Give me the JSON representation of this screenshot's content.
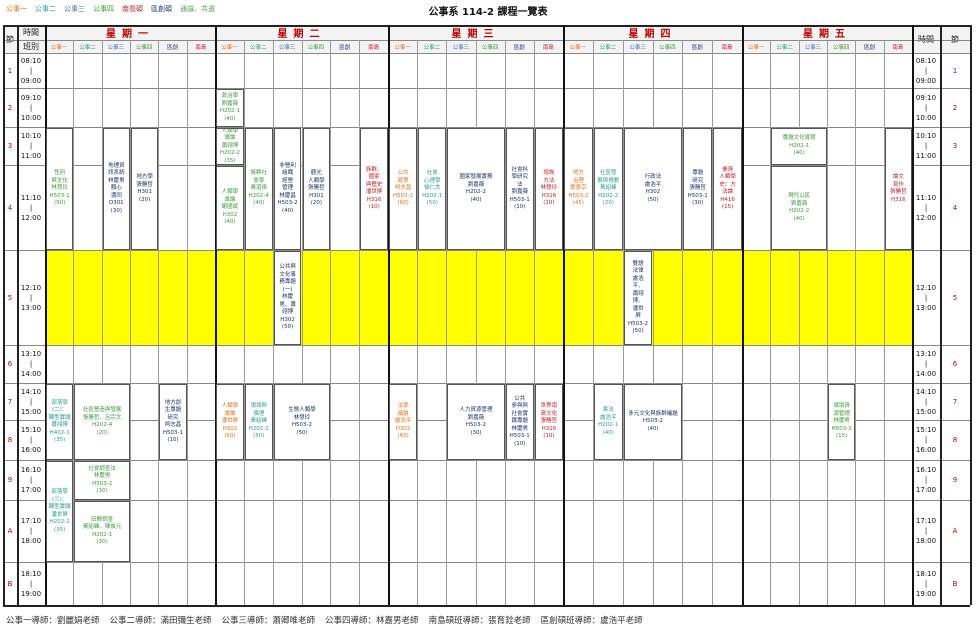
{
  "header": {
    "title": "公事系 114-2 課程一覽表",
    "legend": [
      {
        "label": "公事一",
        "color": "#e0701a"
      },
      {
        "label": "公事二",
        "color": "#2a9d8f"
      },
      {
        "label": "公事三",
        "color": "#3a6fb0"
      },
      {
        "label": "公事四",
        "color": "#3c9a3c"
      },
      {
        "label": "南島碩",
        "color": "#c0202a"
      },
      {
        "label": "區創碩",
        "color": "#1f2f6e"
      },
      {
        "label": "通識、共選",
        "color": "#5a9a5a"
      }
    ]
  },
  "table": {
    "period_header": "節",
    "time_header": "時間",
    "class_header": "班別",
    "periods": [
      {
        "no": "1",
        "start": "08:10",
        "end": "09:00"
      },
      {
        "no": "2",
        "start": "09:10",
        "end": "10:00"
      },
      {
        "no": "3",
        "start": "10:10",
        "end": "11:00"
      },
      {
        "no": "4",
        "start": "11:10",
        "end": "12:00"
      },
      {
        "no": "5",
        "start": "12:10",
        "end": "13:00"
      },
      {
        "no": "6",
        "start": "13:10",
        "end": "14:00"
      },
      {
        "no": "7",
        "start": "14:10",
        "end": "15:00"
      },
      {
        "no": "8",
        "start": "15:10",
        "end": "16:00"
      },
      {
        "no": "9",
        "start": "16:10",
        "end": "17:00"
      },
      {
        "no": "A",
        "start": "17:10",
        "end": "18:00"
      },
      {
        "no": "B",
        "start": "18:10",
        "end": "19:00"
      }
    ],
    "days": [
      {
        "name": "星期一",
        "columns": [
          "公事一",
          "公事二",
          "公事三",
          "公事四",
          "區創",
          "南島"
        ],
        "courses": [
          {
            "color": "#3c9a3c",
            "lines": [
              "性別",
              "與文化",
              "林慧玲",
              "H503-1",
              "(50)"
            ]
          },
          {
            "color": "#1f2f6e",
            "lines": [
              "地理資",
              "訊系統",
              "林慶男",
              "顏心",
              "濃同",
              "D301",
              "(30)"
            ]
          },
          {
            "color": "#1f2f6e",
            "lines": [
              "地方學",
              "張勝哲",
              "H301",
              "(20)"
            ]
          },
          {
            "color": "#2a9d8f",
            "lines": [
              "部落學",
              "(二)：",
              "轉型實踐",
              "蕭翊博",
              "H402-1",
              "(35)"
            ]
          },
          {
            "color": "#2a9d8f",
            "lines": [
              "部落學",
              "(三)：",
              "轉型實踐",
              "潘世屏",
              "H202-2",
              "(35)"
            ]
          },
          {
            "color": "#3c9a3c",
            "lines": [
              "社區營造與發展",
              "張勝哲、呂宗文",
              "H202-4",
              "(20)"
            ]
          },
          {
            "color": "#3c9a3c",
            "lines": [
              "社會調查法",
              "林慶男",
              "H503-2",
              "(30)"
            ]
          },
          {
            "color": "#3c9a3c",
            "lines": [
              "田野調查",
              "黃紹峰、陳俊元",
              "H202-1",
              "(30)"
            ]
          },
          {
            "color": "#1f2f6e",
            "lines": [
              "地方創",
              "生專題",
              "研究",
              "柯志昌",
              "H503-1",
              "(10)"
            ]
          }
        ]
      },
      {
        "name": "星期二",
        "columns": [
          "公事一",
          "公事二",
          "公事三",
          "公事四",
          "區創",
          "南島"
        ],
        "courses": [
          {
            "color": "#3c9a3c",
            "lines": [
              "政治學",
              "劉嘉薇",
              "H202-1",
              "(40)"
            ]
          },
          {
            "color": "#3c9a3c",
            "lines": [
              "人類學",
              "導論",
              "蕭翊博",
              "H202-2",
              "(35)"
            ]
          },
          {
            "color": "#3c9a3c",
            "lines": [
              "人類學",
              "導論",
              "謝國斌",
              "H302",
              "(40)"
            ]
          },
          {
            "color": "#3c9a3c",
            "lines": [
              "族群社",
              "會學",
              "黃道偉",
              "H202-4",
              "(40)"
            ]
          },
          {
            "color": "#1f2f6e",
            "lines": [
              "非營利",
              "組織",
              "經營",
              "管理",
              "林慶昌",
              "H503-2",
              "(40)"
            ]
          },
          {
            "color": "#1f2f6e",
            "lines": [
              "觀光",
              "人類學",
              "張勝哲",
              "H301",
              "(20)"
            ]
          },
          {
            "color": "#c0202a",
            "lines": [
              "族群、",
              "國家",
              "與歷史",
              "潘世屏",
              "H316",
              "(10)"
            ]
          },
          {
            "color": "#1f2f6e",
            "lines": [
              "公共與",
              "文化事",
              "務專題",
              "(一)",
              "林慶",
              "男、蕭",
              "翊博",
              "H302",
              "(50)"
            ]
          },
          {
            "color": "#e0701a",
            "lines": [
              "人類學",
              "導論",
              "潘世屏",
              "H302",
              "(60)"
            ]
          },
          {
            "color": "#2a9d8f",
            "lines": [
              "環境與",
              "倫理",
              "黃紹峰",
              "H202-2",
              "(50)"
            ]
          },
          {
            "color": "#1f2f6e",
            "lines": [
              "生態人類學",
              "林慧玲",
              "H503-2",
              "(50)"
            ]
          }
        ]
      },
      {
        "name": "星期三",
        "columns": [
          "公事一",
          "公事二",
          "公事三",
          "公事四",
          "區創",
          "南島"
        ],
        "courses": [
          {
            "color": "#e0701a",
            "lines": [
              "公共",
              "政策",
              "柯志昌",
              "H503-2",
              "(60)"
            ]
          },
          {
            "color": "#2a9d8f",
            "lines": [
              "社會",
              "心理學",
              "徐仁杰",
              "H202-1",
              "(50)"
            ]
          },
          {
            "color": "#1f2f6e",
            "lines": [
              "國家發展實務",
              "劉嘉薇",
              "H202-2",
              "(40)"
            ]
          },
          {
            "color": "#1f2f6e",
            "lines": [
              "社會科",
              "學研究",
              "法",
              "劉嘉薇",
              "H503-1",
              "(10)"
            ]
          },
          {
            "color": "#c0202a",
            "lines": [
              "諮詢",
              "方法",
              "林慧玲",
              "H316",
              "(10)"
            ]
          },
          {
            "color": "#e0701a",
            "lines": [
              "法學",
              "緒論",
              "盧浩平",
              "H302",
              "(60)"
            ]
          },
          {
            "color": "#1f2f6e",
            "lines": [
              "人力資源管理",
              "劉嘉薇",
              "H503-2",
              "(30)"
            ]
          },
          {
            "color": "#1f2f6e",
            "lines": [
              "公共",
              "參與與",
              "社會實",
              "踐專題",
              "林慶男",
              "H503-1",
              "(10)"
            ]
          },
          {
            "color": "#c0202a",
            "lines": [
              "世界南",
              "島文化",
              "張勝哲",
              "H316",
              "(10)"
            ]
          }
        ]
      },
      {
        "name": "星期四",
        "columns": [
          "公事一",
          "公事二",
          "公事三",
          "公事四",
          "區創",
          "南島"
        ],
        "courses": [
          {
            "color": "#e0701a",
            "lines": [
              "地方",
              "治理",
              "鄭景宗",
              "H503-2",
              "(45)"
            ]
          },
          {
            "color": "#2a9d8f",
            "lines": [
              "社區發",
              "展與規劃",
              "黃紹峰",
              "H202-2",
              "(20)"
            ]
          },
          {
            "color": "#1f2f6e",
            "lines": [
              "行政法",
              "盧浩平",
              "H302",
              "(50)"
            ]
          },
          {
            "color": "#1f2f6e",
            "lines": [
              "專題",
              "研究",
              "張勝哲",
              "H503-1",
              "(30)"
            ]
          },
          {
            "color": "#c0202a",
            "lines": [
              "臺灣",
              "人類學",
              "史：方",
              "法論",
              "H416",
              "(15)"
            ]
          },
          {
            "color": "#1f2f6e",
            "lines": [
              "雙語",
              "法律",
              "盧浩",
              "平、",
              "蕭翊",
              "博、",
              "潘世",
              "屏",
              "H503-2",
              "(50)"
            ]
          },
          {
            "color": "#2a9d8f",
            "lines": [
              "憲法",
              "盧浩平",
              "H202-1",
              "(40)"
            ]
          },
          {
            "color": "#1f2f6e",
            "lines": [
              "多元文化與族群議題",
              "H503-2",
              "(40)"
            ]
          }
        ]
      },
      {
        "name": "星期五",
        "columns": [
          "公事一",
          "公事二",
          "公事三",
          "公事四",
          "區創",
          "南島"
        ],
        "courses": [
          {
            "color": "#3c9a3c",
            "lines": [
              "專題文化導覽",
              "H202-1",
              "(40)"
            ]
          },
          {
            "color": "#3c9a3c",
            "lines": [
              "現代公民",
              "劉嘉薇",
              "H202-2",
              "(40)"
            ]
          },
          {
            "color": "#c0202a",
            "lines": [
              "論文",
              "寫作",
              "張勝哲",
              "H316"
            ]
          },
          {
            "color": "#3c9a3c",
            "lines": [
              "環境資",
              "源管理",
              "林慶男",
              "H503-2",
              "(15)"
            ]
          }
        ]
      }
    ]
  },
  "footer": [
    "公事一導師：劉麗娟老師",
    "公事二導師：滿田彌生老師",
    "公事三導師：蕭卿唯老師",
    "公事四導師：林嘉男老師",
    "南島碩班導師：張育銓老師",
    "區創碩班導師：盧浩平老師"
  ]
}
